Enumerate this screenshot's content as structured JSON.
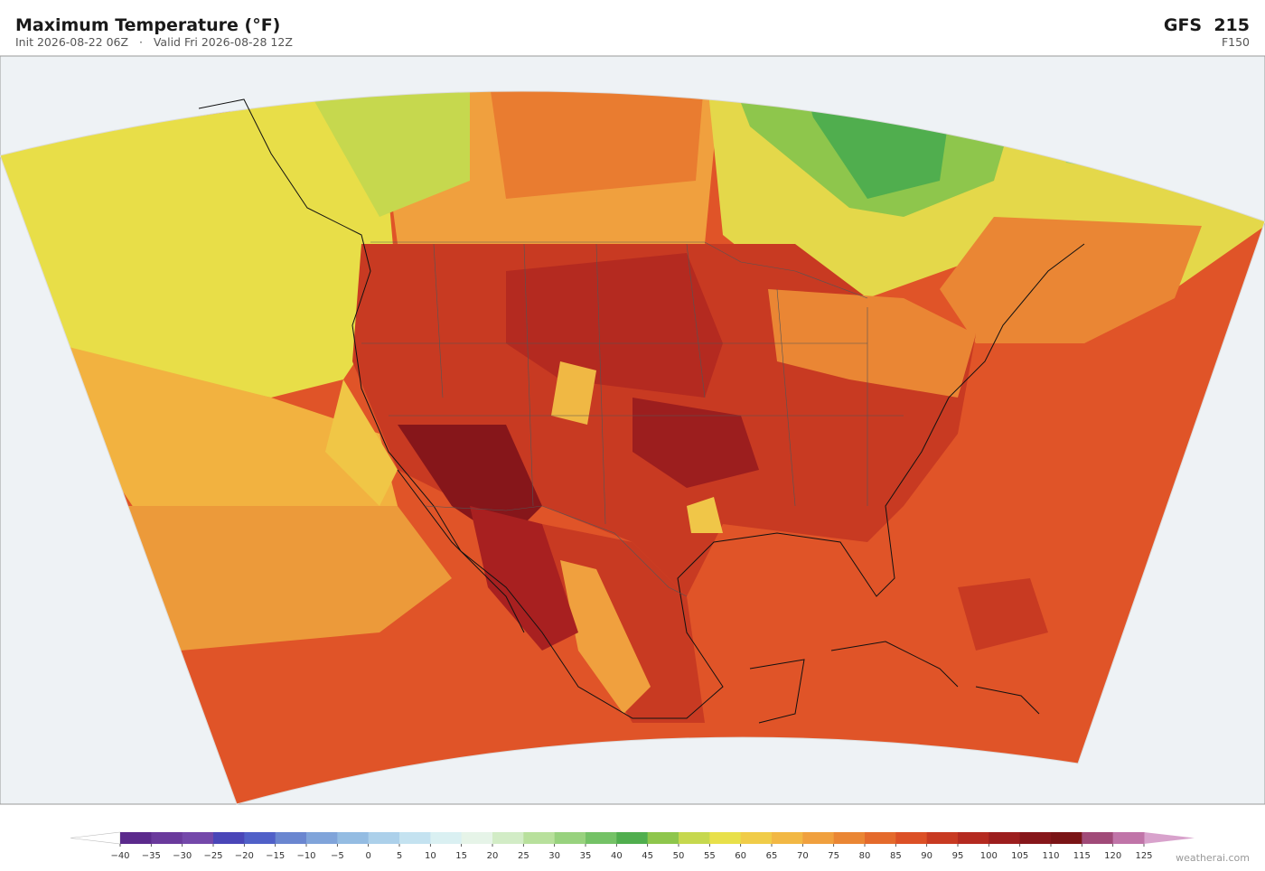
{
  "header": {
    "title": "Maximum Temperature  (°F)",
    "subtitle": "Init 2026-08-22 06Z   ·   Valid Fri 2026-08-28 12Z",
    "model": "GFS  215",
    "forecast_hour": "F150"
  },
  "colorbar": {
    "ticks": [
      {
        "value": -40,
        "label": "−40"
      },
      {
        "value": -35,
        "label": "−35"
      },
      {
        "value": -30,
        "label": "−30"
      },
      {
        "value": -25,
        "label": "−25"
      },
      {
        "value": -20,
        "label": "−20"
      },
      {
        "value": -15,
        "label": "−15"
      },
      {
        "value": -10,
        "label": "−10"
      },
      {
        "value": -5,
        "label": "−5"
      },
      0,
      5,
      10,
      15,
      20,
      25,
      30,
      35,
      40,
      45,
      50,
      55,
      60,
      65,
      70,
      75,
      80,
      85,
      90,
      95,
      100,
      105,
      110,
      115,
      120,
      125
    ],
    "colors": [
      "#5b2a8c",
      "#6a3a9c",
      "#7448aa",
      "#4a46b8",
      "#5060c8",
      "#6a86d0",
      "#80a4da",
      "#94bce2",
      "#acd0ea",
      "#c4e2f0",
      "#daf0f2",
      "#e6f4e8",
      "#d2ecc6",
      "#b8e09c",
      "#98d27e",
      "#74c266",
      "#50ae4e",
      "#8ec64c",
      "#c6d84e",
      "#e8e04a",
      "#f0cc48",
      "#f2b844",
      "#f0a03e",
      "#ea8634",
      "#e46a2c",
      "#dc5026",
      "#c83a22",
      "#b42a20",
      "#9c1e1e",
      "#86161a",
      "#7a1416",
      "#a04a78",
      "#c074a8"
    ],
    "under_color": "#ffffff",
    "over_color": "#d8a2cc"
  },
  "footer": {
    "credit": "weatherai.com"
  }
}
